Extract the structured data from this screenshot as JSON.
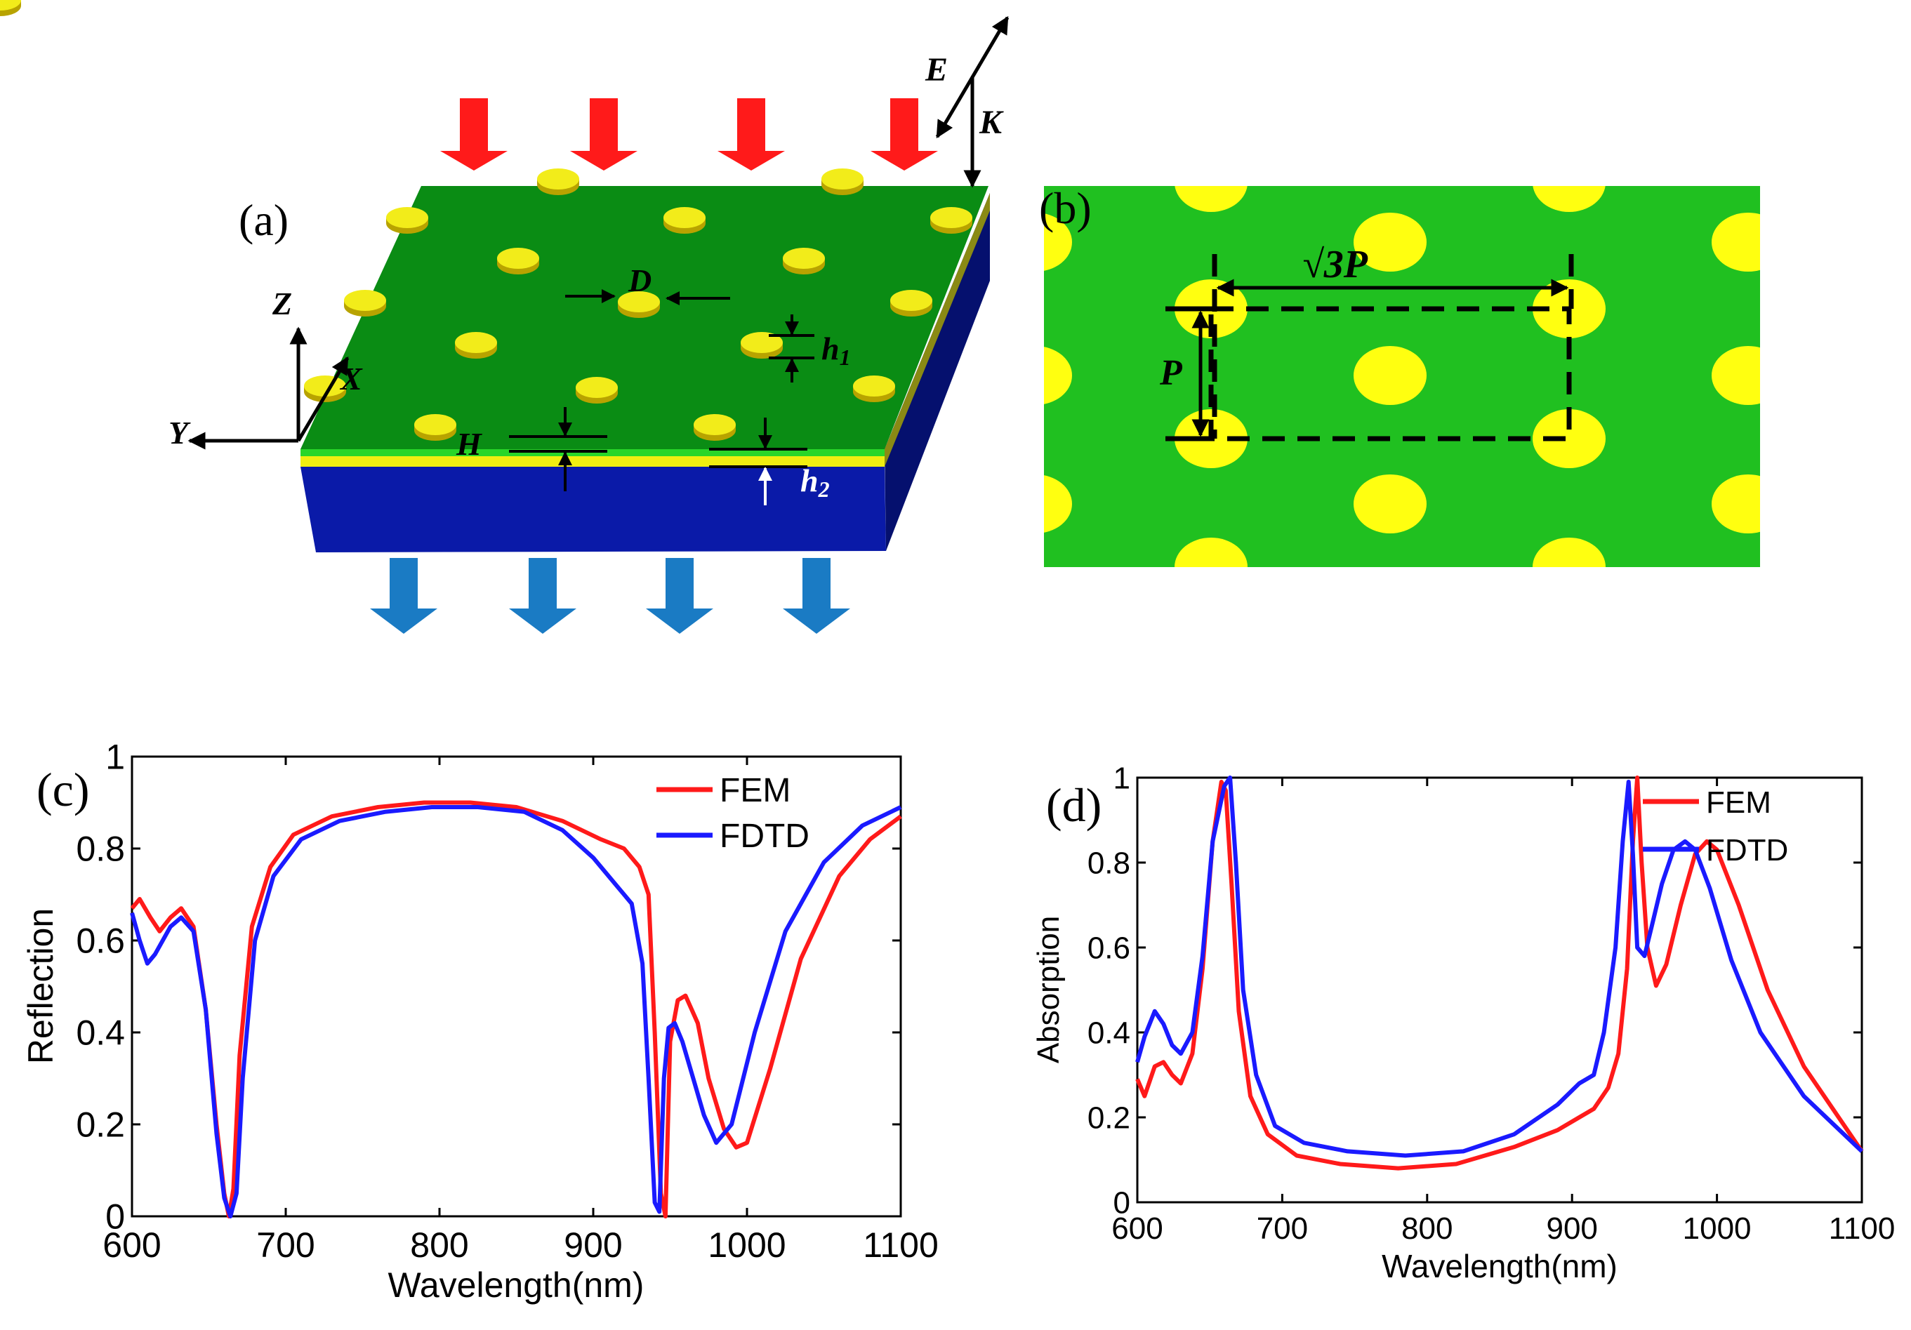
{
  "panel_a": {
    "label": "(a)",
    "annotations": {
      "E": "E",
      "K": "K",
      "D": "D",
      "h1": "h1",
      "H": "H",
      "h2": "h2",
      "Z": "Z",
      "X": "X",
      "Y": "Y"
    },
    "colors": {
      "top": "#0a8c14",
      "substrate": "#0a1aa8",
      "particle": "#f2ec1a",
      "incident": "#ff1a1a",
      "transmitted": "#1a7bc4"
    }
  },
  "panel_b": {
    "label": "(b)",
    "annotations": {
      "sqrt3P": "√3P",
      "P": "P"
    },
    "colors": {
      "background": "#20c020",
      "particle": "#ffff10"
    }
  },
  "chart_data": [
    {
      "id": "c",
      "panel_label": "(c)",
      "type": "line",
      "xlabel": "Wavelength(nm)",
      "ylabel": "Reflection",
      "xlim": [
        600,
        1100
      ],
      "ylim": [
        0,
        1
      ],
      "xticks": [
        600,
        700,
        800,
        900,
        1000,
        1100
      ],
      "yticks": [
        0,
        0.2,
        0.4,
        0.6,
        0.8,
        1
      ],
      "ytick_labels": [
        "0",
        "0.2",
        "0.4",
        "0.6",
        "0.8",
        "1"
      ],
      "legend": "top-right",
      "series": [
        {
          "name": "FEM",
          "color": "#ff1a1a",
          "x": [
            600,
            605,
            612,
            618,
            625,
            632,
            640,
            648,
            655,
            660,
            663,
            666,
            670,
            678,
            690,
            705,
            730,
            760,
            790,
            820,
            850,
            880,
            905,
            920,
            930,
            936,
            940,
            944,
            947,
            950,
            955,
            960,
            968,
            975,
            985,
            993,
            1000,
            1015,
            1035,
            1060,
            1080,
            1100
          ],
          "y": [
            0.67,
            0.69,
            0.65,
            0.62,
            0.65,
            0.67,
            0.63,
            0.45,
            0.2,
            0.05,
            0.0,
            0.06,
            0.35,
            0.63,
            0.76,
            0.83,
            0.87,
            0.89,
            0.9,
            0.9,
            0.89,
            0.86,
            0.82,
            0.8,
            0.76,
            0.7,
            0.4,
            0.05,
            0.0,
            0.38,
            0.47,
            0.48,
            0.42,
            0.3,
            0.19,
            0.15,
            0.16,
            0.32,
            0.56,
            0.74,
            0.82,
            0.87
          ]
        },
        {
          "name": "FDTD",
          "color": "#1a1aff",
          "x": [
            600,
            605,
            610,
            615,
            625,
            632,
            640,
            648,
            655,
            660,
            664,
            668,
            672,
            680,
            692,
            710,
            735,
            765,
            795,
            825,
            855,
            880,
            900,
            915,
            925,
            932,
            936,
            940,
            943,
            946,
            949,
            953,
            958,
            965,
            972,
            980,
            990,
            1005,
            1025,
            1050,
            1075,
            1100
          ],
          "y": [
            0.66,
            0.6,
            0.55,
            0.57,
            0.63,
            0.65,
            0.62,
            0.45,
            0.18,
            0.04,
            0.0,
            0.05,
            0.3,
            0.6,
            0.74,
            0.82,
            0.86,
            0.88,
            0.89,
            0.89,
            0.88,
            0.84,
            0.78,
            0.72,
            0.68,
            0.55,
            0.3,
            0.03,
            0.01,
            0.3,
            0.41,
            0.42,
            0.38,
            0.3,
            0.22,
            0.16,
            0.2,
            0.4,
            0.62,
            0.77,
            0.85,
            0.89
          ]
        }
      ]
    },
    {
      "id": "d",
      "panel_label": "(d)",
      "type": "line",
      "xlabel": "Wavelength(nm)",
      "ylabel": "Absorption",
      "xlim": [
        600,
        1100
      ],
      "ylim": [
        0,
        1
      ],
      "xticks": [
        600,
        700,
        800,
        900,
        1000,
        1100
      ],
      "yticks": [
        0,
        0.2,
        0.4,
        0.6,
        0.8,
        1
      ],
      "ytick_labels": [
        "0",
        "0.2",
        "0.4",
        "0.6",
        "0.8",
        "1"
      ],
      "legend": "top-right",
      "series": [
        {
          "name": "FEM",
          "color": "#ff1a1a",
          "x": [
            600,
            605,
            612,
            618,
            624,
            630,
            638,
            645,
            652,
            658,
            661,
            665,
            670,
            678,
            690,
            710,
            740,
            780,
            820,
            860,
            890,
            905,
            915,
            925,
            932,
            938,
            942,
            945,
            948,
            952,
            958,
            965,
            975,
            985,
            993,
            1000,
            1015,
            1035,
            1060,
            1100
          ],
          "y": [
            0.29,
            0.25,
            0.32,
            0.33,
            0.3,
            0.28,
            0.35,
            0.55,
            0.85,
            0.99,
            0.97,
            0.75,
            0.45,
            0.25,
            0.16,
            0.11,
            0.09,
            0.08,
            0.09,
            0.13,
            0.17,
            0.2,
            0.22,
            0.27,
            0.35,
            0.55,
            0.85,
            1.0,
            0.8,
            0.6,
            0.51,
            0.56,
            0.7,
            0.82,
            0.85,
            0.83,
            0.7,
            0.5,
            0.32,
            0.12
          ]
        },
        {
          "name": "FDTD",
          "color": "#1a1aff",
          "x": [
            600,
            605,
            612,
            618,
            624,
            630,
            638,
            645,
            652,
            660,
            664,
            668,
            673,
            682,
            695,
            715,
            745,
            785,
            825,
            860,
            890,
            905,
            915,
            922,
            930,
            935,
            939,
            942,
            945,
            950,
            955,
            962,
            970,
            978,
            985,
            995,
            1010,
            1030,
            1060,
            1100
          ],
          "y": [
            0.33,
            0.39,
            0.45,
            0.42,
            0.37,
            0.35,
            0.4,
            0.58,
            0.85,
            0.98,
            1.0,
            0.8,
            0.5,
            0.3,
            0.18,
            0.14,
            0.12,
            0.11,
            0.12,
            0.16,
            0.23,
            0.28,
            0.3,
            0.4,
            0.6,
            0.85,
            0.99,
            0.82,
            0.6,
            0.58,
            0.65,
            0.75,
            0.83,
            0.85,
            0.83,
            0.74,
            0.57,
            0.4,
            0.25,
            0.12
          ]
        }
      ]
    }
  ]
}
